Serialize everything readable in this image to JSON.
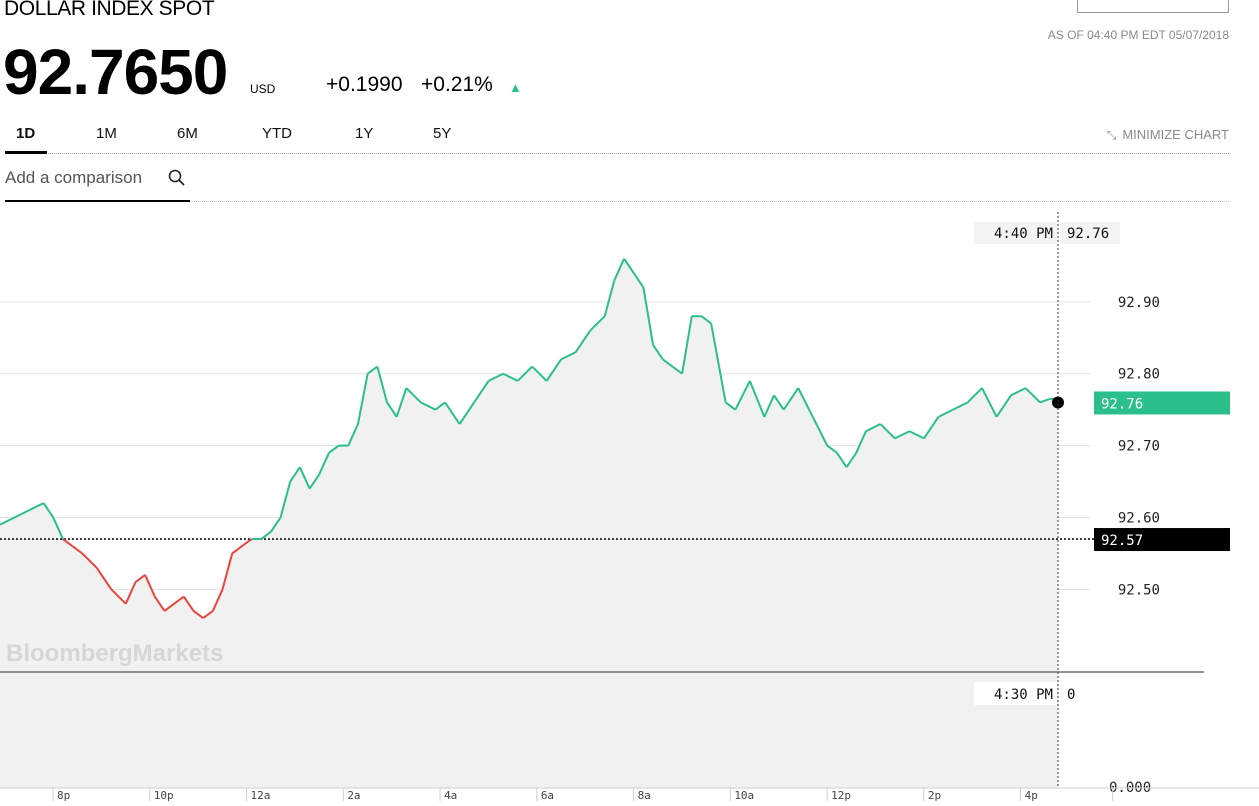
{
  "header": {
    "title": "DOLLAR INDEX SPOT",
    "as_of": "AS OF 04:40 PM EDT 05/07/2018",
    "price": "92.7650",
    "currency": "USD",
    "change": "+0.1990",
    "change_pct": "+0.21%"
  },
  "tabs": [
    {
      "label": "1D",
      "active": true
    },
    {
      "label": "1M",
      "active": false
    },
    {
      "label": "6M",
      "active": false
    },
    {
      "label": "YTD",
      "active": false
    },
    {
      "label": "1Y",
      "active": false
    },
    {
      "label": "5Y",
      "active": false
    }
  ],
  "minimize_label": "MINIMIZE CHART",
  "compare_label": "Add a comparison",
  "watermark": "BloombergMarkets",
  "colors": {
    "up": "#2bbf8a",
    "down": "#e8453c",
    "area": "#f1f1f1",
    "prev_close_tag": "#000000"
  },
  "icons": {
    "search": "search-icon",
    "minimize": "minimize-icon",
    "trend": "up-triangle-icon"
  },
  "chart_data": {
    "type": "line",
    "x_ticks": [
      "8p",
      "10p",
      "12a",
      "2a",
      "4a",
      "6a",
      "8a",
      "10a",
      "12p",
      "2p",
      "4p"
    ],
    "x_range": [
      -5.2,
      16.67
    ],
    "y_ticks": [
      "92.90",
      "92.80",
      "92.70",
      "92.60",
      "92.50"
    ],
    "y_tick_values": [
      92.9,
      92.8,
      92.7,
      92.6,
      92.5
    ],
    "ylim": [
      92.385,
      93.025
    ],
    "prev_close": 92.57,
    "prev_close_label": "92.57",
    "last_value": 92.76,
    "last_value_label": "92.76",
    "crosshair_time": "4:40 PM",
    "crosshair_value": "92.76",
    "volume": {
      "crosshair_time": "4:30 PM",
      "crosshair_value": "0",
      "axis_label": "0.000"
    },
    "series": [
      {
        "x": [
          -5.2,
          -4.9,
          -4.6,
          -4.3,
          -4.1,
          -3.9,
          -3.7,
          -3.5,
          -3.2,
          -2.9,
          -2.6,
          -2.4,
          -2.2,
          -2.0,
          -1.8,
          -1.6,
          -1.4,
          -1.2,
          -1.0,
          -0.8,
          -0.6,
          -0.4,
          -0.2,
          0.0,
          0.2,
          0.4,
          0.6,
          0.8,
          1.0,
          1.2,
          1.4,
          1.6,
          1.8,
          2.0,
          2.2,
          2.4,
          2.6,
          2.8,
          3.0,
          3.2,
          3.5,
          3.8,
          4.0,
          4.3,
          4.6,
          4.9,
          5.2,
          5.5,
          5.8,
          6.1,
          6.4,
          6.7,
          7.0,
          7.3,
          7.5,
          7.7,
          7.9,
          8.1,
          8.3,
          8.5,
          8.7,
          8.9,
          9.1,
          9.3,
          9.5,
          9.8,
          10.0,
          10.3,
          10.6,
          10.8,
          11.0,
          11.3,
          11.6,
          11.9,
          12.1,
          12.3,
          12.5,
          12.7,
          13.0,
          13.3,
          13.6,
          13.9,
          14.2,
          14.5,
          14.8,
          15.1,
          15.4,
          15.7,
          16.0,
          16.3,
          16.5,
          16.67
        ],
        "y": [
          92.59,
          92.6,
          92.61,
          92.62,
          92.6,
          92.57,
          92.56,
          92.55,
          92.53,
          92.5,
          92.48,
          92.51,
          92.52,
          92.49,
          92.47,
          92.48,
          92.49,
          92.47,
          92.46,
          92.47,
          92.5,
          92.55,
          92.56,
          92.57,
          92.57,
          92.58,
          92.6,
          92.65,
          92.67,
          92.64,
          92.66,
          92.69,
          92.7,
          92.7,
          92.73,
          92.8,
          92.81,
          92.76,
          92.74,
          92.78,
          92.76,
          92.75,
          92.76,
          92.73,
          92.76,
          92.79,
          92.8,
          92.79,
          92.81,
          92.79,
          92.82,
          92.83,
          92.86,
          92.88,
          92.93,
          92.96,
          92.94,
          92.92,
          92.84,
          92.82,
          92.81,
          92.8,
          92.88,
          92.88,
          92.87,
          92.76,
          92.75,
          92.79,
          92.74,
          92.77,
          92.75,
          92.78,
          92.74,
          92.7,
          92.69,
          92.67,
          92.69,
          92.72,
          92.73,
          92.71,
          92.72,
          92.71,
          92.74,
          92.75,
          92.76,
          92.78,
          92.74,
          92.77,
          92.78,
          92.76,
          92.765,
          92.765
        ]
      }
    ]
  }
}
